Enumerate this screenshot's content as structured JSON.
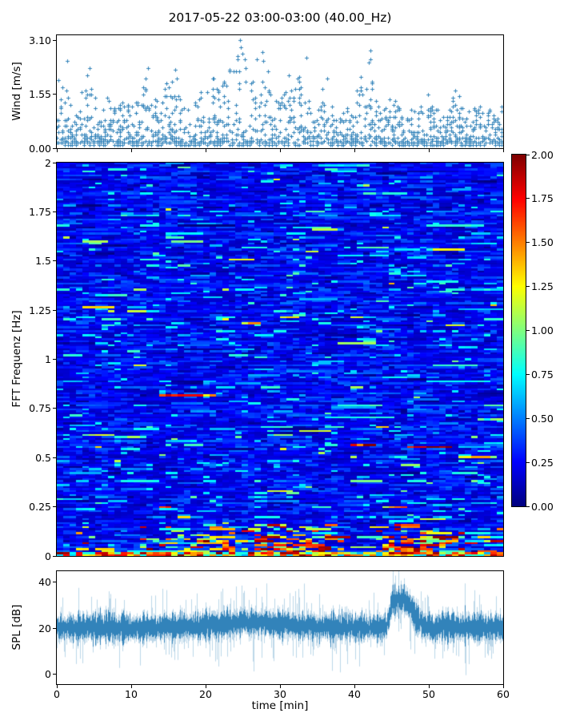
{
  "title": "2017-05-22 03:00-03:00 (40.00_Hz)",
  "colors": {
    "series": "#1f77b4",
    "spine": "#000000",
    "background": "#ffffff",
    "text": "#000000"
  },
  "chart_data": [
    {
      "id": "wind",
      "type": "scatter",
      "ylabel": "Wind [m/s]",
      "xlim": [
        0,
        60
      ],
      "ylim": [
        0,
        3.24
      ],
      "yticks": [
        {
          "v": 0.0,
          "label": "0.00"
        },
        {
          "v": 1.55,
          "label": "1.55"
        },
        {
          "v": 3.1,
          "label": "3.10"
        }
      ],
      "xticks": [
        {
          "v": 0
        },
        {
          "v": 10
        },
        {
          "v": 20
        },
        {
          "v": 30
        },
        {
          "v": 40
        },
        {
          "v": 50
        },
        {
          "v": 60
        }
      ],
      "marker": "plus",
      "color": "#1f77b4",
      "seed": 1337,
      "quantize_step": 0.05,
      "minute_peak_envelope": [
        1.95,
        2.5,
        1.75,
        1.25,
        2.3,
        1.55,
        1.05,
        1.85,
        1.0,
        1.6,
        1.35,
        1.45,
        2.3,
        1.5,
        1.25,
        2.25,
        2.0,
        1.3,
        1.0,
        1.55,
        1.8,
        2.0,
        1.6,
        2.2,
        2.65,
        3.1,
        2.45,
        2.75,
        2.2,
        1.6,
        1.85,
        2.1,
        1.5,
        2.6,
        1.7,
        1.45,
        2.0,
        1.25,
        1.0,
        1.3,
        1.05,
        2.35,
        2.8,
        1.45,
        1.1,
        1.65,
        1.25,
        0.95,
        1.45,
        1.15,
        1.65,
        1.25,
        1.05,
        1.3,
        1.8,
        1.05,
        1.15,
        1.55,
        1.05,
        1.35,
        1.25
      ],
      "highlight_points": [
        {
          "t": 24.6,
          "v": 3.1
        },
        {
          "t": 24.7,
          "v": 2.9
        },
        {
          "t": 24.9,
          "v": 2.7
        },
        {
          "t": 25.3,
          "v": 2.55
        },
        {
          "t": 27.6,
          "v": 2.75
        },
        {
          "t": 27.7,
          "v": 2.5
        },
        {
          "t": 42.1,
          "v": 2.8
        },
        {
          "t": 42.2,
          "v": 2.55
        },
        {
          "t": 1.35,
          "v": 2.5
        },
        {
          "t": 33.5,
          "v": 2.6
        },
        {
          "t": 12.3,
          "v": 2.3
        },
        {
          "t": 4.4,
          "v": 2.3
        },
        {
          "t": 15.9,
          "v": 2.25
        },
        {
          "t": 23.2,
          "v": 2.2
        },
        {
          "t": 28.4,
          "v": 2.2
        },
        {
          "t": 31.2,
          "v": 2.1
        },
        {
          "t": 36.3,
          "v": 2.0
        },
        {
          "t": 21.1,
          "v": 2.0
        },
        {
          "t": 16.1,
          "v": 2.0
        },
        {
          "t": 0.2,
          "v": 1.95
        }
      ]
    },
    {
      "id": "spectrogram",
      "type": "heatmap",
      "ylabel": "FFT Frequenz [Hz]",
      "xlim": [
        0,
        60
      ],
      "ylim": [
        0,
        2
      ],
      "vmin": 0,
      "vmax": 2,
      "colormap": "jet",
      "yticks": [
        {
          "v": 0,
          "label": "0"
        },
        {
          "v": 0.25,
          "label": "0.25"
        },
        {
          "v": 0.5,
          "label": "0.5"
        },
        {
          "v": 0.75,
          "label": "0.75"
        },
        {
          "v": 1,
          "label": "1"
        },
        {
          "v": 1.25,
          "label": "1.25"
        },
        {
          "v": 1.5,
          "label": "1.5"
        },
        {
          "v": 1.75,
          "label": "1.75"
        },
        {
          "v": 2,
          "label": "2"
        }
      ],
      "grid": {
        "cols": 70,
        "rows": 197
      },
      "background_level": {
        "base": 0.14,
        "spread": 0.32,
        "dark_fraction": 0.075,
        "cyan_fraction": 0.07,
        "green_fraction": 0.009,
        "persistence": 0.42
      },
      "warm_zones": [
        {
          "t0": 11,
          "t1": 27,
          "w": 0.45
        },
        {
          "t0": 27,
          "t1": 37,
          "w": 0.8
        },
        {
          "t0": 43,
          "t1": 52,
          "w": 0.85
        },
        {
          "t0": 52,
          "t1": 56,
          "w": 0.3
        }
      ],
      "features": [
        {
          "t0": 14.2,
          "t1": 21.3,
          "f": 0.82,
          "v": 1.55
        },
        {
          "t0": 4.0,
          "t1": 7.5,
          "f": 0.615,
          "v": 1.05
        },
        {
          "t0": 8.0,
          "t1": 12.0,
          "f": 0.6,
          "v": 0.95
        },
        {
          "t0": 40.0,
          "t1": 42.7,
          "f": 0.565,
          "v": 1.8
        },
        {
          "t0": 47.3,
          "t1": 52.6,
          "f": 0.553,
          "v": 1.85
        },
        {
          "t0": 54.5,
          "t1": 59.0,
          "f": 0.5,
          "v": 1.25
        },
        {
          "t0": 25.5,
          "t1": 27.2,
          "f": 1.18,
          "v": 1.3
        },
        {
          "t0": 30.8,
          "t1": 32.2,
          "f": 1.21,
          "v": 1.15
        },
        {
          "t0": 13.8,
          "t1": 15.2,
          "f": 0.245,
          "v": 1.5
        },
        {
          "t0": 28.5,
          "t1": 31.5,
          "f": 0.33,
          "v": 1.1
        },
        {
          "t0": 44.5,
          "t1": 47.0,
          "f": 0.25,
          "v": 1.35
        },
        {
          "t0": 57.0,
          "t1": 59.5,
          "f": 0.7,
          "v": 0.9
        }
      ],
      "seed": 20170522,
      "colorbar": {
        "vmin": 0,
        "vmax": 2,
        "colormap": "jet",
        "ticks": [
          {
            "v": 0,
            "label": "0.00"
          },
          {
            "v": 0.25,
            "label": "0.25"
          },
          {
            "v": 0.5,
            "label": "0.50"
          },
          {
            "v": 0.75,
            "label": "0.75"
          },
          {
            "v": 1.0,
            "label": "1.00"
          },
          {
            "v": 1.25,
            "label": "1.25"
          },
          {
            "v": 1.5,
            "label": "1.50"
          },
          {
            "v": 1.75,
            "label": "1.75"
          },
          {
            "v": 2.0,
            "label": "2.00"
          }
        ]
      }
    },
    {
      "id": "spl",
      "type": "line",
      "ylabel": "SPL [dB]",
      "xlabel": "time [min]",
      "xlim": [
        0,
        60
      ],
      "ylim": [
        -4.2,
        44.6
      ],
      "yticks": [
        {
          "v": 0,
          "label": "0"
        },
        {
          "v": 20,
          "label": "20"
        },
        {
          "v": 40,
          "label": "40"
        }
      ],
      "xticks": [
        {
          "v": 0,
          "label": "0"
        },
        {
          "v": 10,
          "label": "10"
        },
        {
          "v": 20,
          "label": "20"
        },
        {
          "v": 30,
          "label": "30"
        },
        {
          "v": 40,
          "label": "40"
        },
        {
          "v": 50,
          "label": "50"
        },
        {
          "v": 60,
          "label": "60"
        }
      ],
      "color": "#1f77b4",
      "seed": 99,
      "baseline_db": 20.3,
      "elevated_region": {
        "center": 26,
        "sigma": 4,
        "amp": 2.3
      },
      "event_bump": {
        "t_start": 45.2,
        "t_end": 46.9,
        "amp": 11.5,
        "sigma_rise": 0.35,
        "sigma_decay": 1.1
      },
      "noise_core_db": 2.4
    }
  ]
}
